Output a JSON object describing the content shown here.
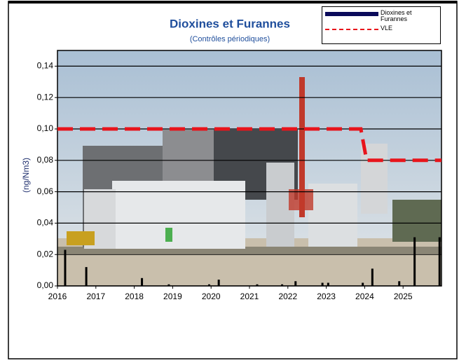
{
  "chart_data": {
    "type": "bar",
    "title": "Dioxines et Furannes",
    "subtitle": "(Contrôles périodiques)",
    "ylabel": "(ng/Nm3)",
    "xlim": [
      2016,
      2026
    ],
    "xticks": [
      2016,
      2017,
      2018,
      2019,
      2020,
      2021,
      2022,
      2023,
      2024,
      2025
    ],
    "ylim": [
      0,
      0.15
    ],
    "yticks": [
      {
        "value": 0,
        "label": "0,00"
      },
      {
        "value": 0.02,
        "label": "0,02"
      },
      {
        "value": 0.04,
        "label": "0,04"
      },
      {
        "value": 0.06,
        "label": "0,06"
      },
      {
        "value": 0.08,
        "label": "0,08"
      },
      {
        "value": 0.1,
        "label": "0,10"
      },
      {
        "value": 0.12,
        "label": "0,12"
      },
      {
        "value": 0.14,
        "label": "0,14"
      }
    ],
    "grid": true,
    "series": [
      {
        "name": "Dioxines et Furannes",
        "type": "bar",
        "color": "#0a0a5a",
        "x": [
          2016.2,
          2016.75,
          2018.2,
          2018.9,
          2019.95,
          2020.2,
          2021.2,
          2021.85,
          2022.2,
          2022.9,
          2023.05,
          2023.95,
          2024.2,
          2024.9,
          2025.3,
          2025.95
        ],
        "values": [
          0.023,
          0.012,
          0.005,
          0.001,
          0.001,
          0.004,
          0.001,
          0.001,
          0.003,
          0.002,
          0.002,
          0.002,
          0.011,
          0.003,
          0.031,
          0.031
        ]
      },
      {
        "name": "VLE",
        "type": "line",
        "color": "#e8141b",
        "dashed": true,
        "x": [
          2016,
          2023.9,
          2024.05,
          2026
        ],
        "values": [
          0.1,
          0.1,
          0.08,
          0.08
        ]
      }
    ]
  }
}
